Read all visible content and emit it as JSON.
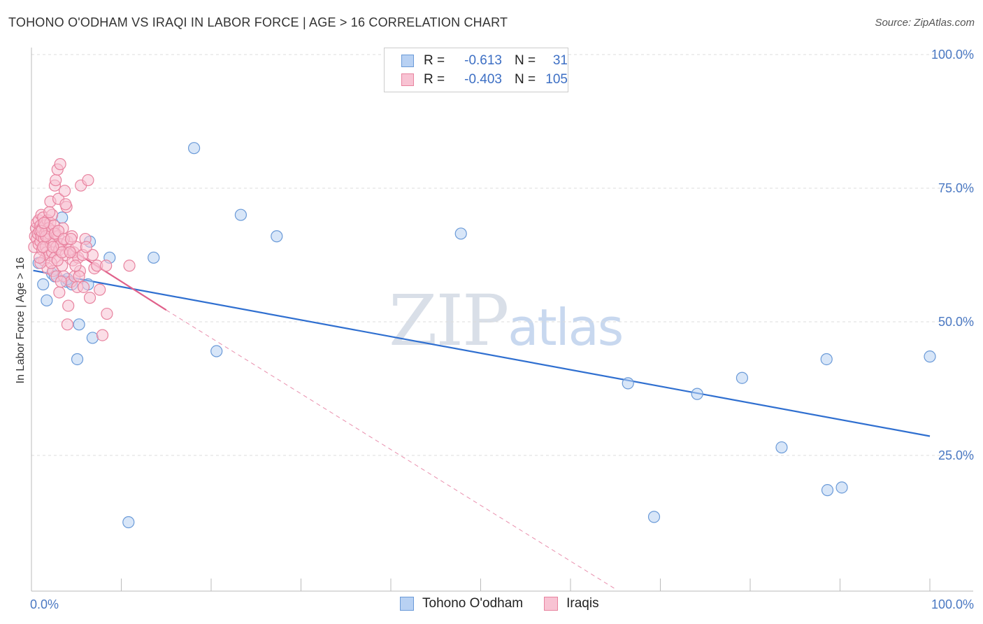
{
  "title": "TOHONO O'ODHAM VS IRAQI IN LABOR FORCE | AGE > 16 CORRELATION CHART",
  "source": "Source: ZipAtlas.com",
  "watermark": {
    "zip": "ZIP",
    "atlas": "atlas"
  },
  "legend": {
    "rows": [
      {
        "r_label": "R =",
        "r_value": "-0.613",
        "n_label": "N =",
        "n_value": "31",
        "fill": "#b8d1f3",
        "stroke": "#6a9ad8"
      },
      {
        "r_label": "R =",
        "r_value": "-0.403",
        "n_label": "N =",
        "n_value": "105",
        "fill": "#f8c3d3",
        "stroke": "#e8839f"
      }
    ]
  },
  "bottom_legend": [
    {
      "label": "Tohono O'odham",
      "fill": "#b8d1f3",
      "stroke": "#6a9ad8"
    },
    {
      "label": "Iraqis",
      "fill": "#f8c3d3",
      "stroke": "#e8839f"
    }
  ],
  "chart_data": {
    "type": "scatter",
    "xlabel": "",
    "ylabel": "In Labor Force | Age > 16",
    "xlim": [
      0,
      100
    ],
    "ylim": [
      0,
      103
    ],
    "x_tick_labels": [
      "0.0%",
      "100.0%"
    ],
    "y_ticks": [
      25,
      50,
      75,
      100
    ],
    "y_tick_labels": [
      "25.0%",
      "50.0%",
      "75.0%",
      "100.0%"
    ],
    "colors": {
      "blue_fill": "#b8d1f3",
      "blue_stroke": "#6a9ad8",
      "blue_line": "#2f6fd0",
      "pink_fill": "#f8c3d3",
      "pink_stroke": "#e8839f",
      "pink_line": "#e0608a"
    },
    "series": [
      {
        "name": "Tohono O'odham",
        "color": "blue",
        "points": [
          [
            0.8,
            61.0
          ],
          [
            1.3,
            57.0
          ],
          [
            1.7,
            54.0
          ],
          [
            2.3,
            59.0
          ],
          [
            2.6,
            58.5
          ],
          [
            3.4,
            69.5
          ],
          [
            3.9,
            57.5
          ],
          [
            4.5,
            57.0
          ],
          [
            5.1,
            43.0
          ],
          [
            5.3,
            49.5
          ],
          [
            6.3,
            57.0
          ],
          [
            6.5,
            65.0
          ],
          [
            6.8,
            47.0
          ],
          [
            8.7,
            62.0
          ],
          [
            10.8,
            12.5
          ],
          [
            13.6,
            62.0
          ],
          [
            18.1,
            82.5
          ],
          [
            20.6,
            44.5
          ],
          [
            23.3,
            70.0
          ],
          [
            27.3,
            66.0
          ],
          [
            47.8,
            66.5
          ],
          [
            66.4,
            38.5
          ],
          [
            69.3,
            13.5
          ],
          [
            74.1,
            36.5
          ],
          [
            79.1,
            39.5
          ],
          [
            83.5,
            26.5
          ],
          [
            88.5,
            43.0
          ],
          [
            88.6,
            18.5
          ],
          [
            90.2,
            19.0
          ],
          [
            100.0,
            43.5
          ],
          [
            4.0,
            58.0
          ]
        ],
        "trend": {
          "x": [
            0.2,
            100.0
          ],
          "y": [
            59.6,
            28.6
          ],
          "style": "solid"
        }
      },
      {
        "name": "Iraqis",
        "color": "pink",
        "points": [
          [
            0.3,
            64.0
          ],
          [
            0.4,
            66.0
          ],
          [
            0.5,
            67.5
          ],
          [
            0.6,
            65.5
          ],
          [
            0.6,
            68.5
          ],
          [
            0.7,
            66.5
          ],
          [
            0.8,
            69.0
          ],
          [
            0.8,
            64.5
          ],
          [
            0.9,
            67.0
          ],
          [
            1.0,
            65.0
          ],
          [
            1.0,
            68.0
          ],
          [
            1.1,
            70.0
          ],
          [
            1.1,
            66.0
          ],
          [
            1.2,
            63.5
          ],
          [
            1.2,
            67.5
          ],
          [
            1.3,
            69.5
          ],
          [
            1.4,
            61.5
          ],
          [
            1.4,
            65.5
          ],
          [
            1.5,
            68.0
          ],
          [
            1.5,
            66.5
          ],
          [
            1.6,
            64.0
          ],
          [
            1.7,
            67.0
          ],
          [
            1.7,
            63.0
          ],
          [
            1.8,
            69.0
          ],
          [
            1.8,
            60.0
          ],
          [
            1.9,
            65.5
          ],
          [
            2.0,
            66.5
          ],
          [
            2.0,
            62.5
          ],
          [
            2.1,
            68.5
          ],
          [
            2.1,
            72.5
          ],
          [
            2.2,
            64.5
          ],
          [
            2.3,
            63.0
          ],
          [
            2.3,
            70.0
          ],
          [
            2.4,
            67.0
          ],
          [
            2.4,
            59.5
          ],
          [
            2.5,
            65.0
          ],
          [
            2.6,
            75.5
          ],
          [
            2.6,
            62.0
          ],
          [
            2.7,
            66.5
          ],
          [
            2.7,
            76.5
          ],
          [
            2.8,
            64.0
          ],
          [
            2.8,
            58.5
          ],
          [
            2.9,
            78.5
          ],
          [
            3.0,
            73.0
          ],
          [
            3.0,
            66.0
          ],
          [
            3.1,
            63.5
          ],
          [
            3.1,
            55.5
          ],
          [
            3.2,
            79.5
          ],
          [
            3.3,
            64.5
          ],
          [
            3.4,
            60.5
          ],
          [
            3.5,
            67.5
          ],
          [
            3.6,
            58.5
          ],
          [
            3.7,
            74.5
          ],
          [
            3.8,
            62.5
          ],
          [
            3.9,
            71.5
          ],
          [
            4.0,
            65.0
          ],
          [
            4.0,
            49.5
          ],
          [
            4.1,
            53.0
          ],
          [
            4.2,
            63.5
          ],
          [
            4.4,
            57.5
          ],
          [
            4.5,
            66.0
          ],
          [
            4.6,
            61.5
          ],
          [
            4.7,
            63.0
          ],
          [
            4.8,
            58.5
          ],
          [
            5.0,
            64.0
          ],
          [
            5.1,
            56.5
          ],
          [
            5.2,
            62.0
          ],
          [
            5.4,
            59.5
          ],
          [
            5.5,
            75.5
          ],
          [
            5.8,
            56.5
          ],
          [
            6.0,
            65.5
          ],
          [
            6.3,
            76.5
          ],
          [
            6.5,
            54.5
          ],
          [
            6.8,
            62.5
          ],
          [
            7.0,
            60.0
          ],
          [
            7.3,
            60.5
          ],
          [
            7.6,
            56.0
          ],
          [
            7.9,
            47.5
          ],
          [
            8.3,
            60.5
          ],
          [
            8.4,
            51.5
          ],
          [
            10.9,
            60.5
          ],
          [
            1.0,
            61.0
          ],
          [
            1.3,
            64.0
          ],
          [
            1.9,
            67.5
          ],
          [
            2.2,
            61.0
          ],
          [
            2.5,
            68.0
          ],
          [
            2.9,
            61.5
          ],
          [
            3.4,
            63.0
          ],
          [
            4.3,
            63.0
          ],
          [
            0.9,
            62.0
          ],
          [
            1.6,
            66.0
          ],
          [
            2.0,
            70.5
          ],
          [
            2.6,
            66.5
          ],
          [
            3.3,
            57.5
          ],
          [
            4.9,
            60.5
          ],
          [
            5.7,
            62.5
          ],
          [
            6.1,
            64.0
          ],
          [
            1.1,
            67.0
          ],
          [
            1.4,
            68.5
          ],
          [
            2.4,
            64.0
          ],
          [
            3.0,
            67.0
          ],
          [
            3.6,
            65.5
          ],
          [
            4.4,
            65.5
          ],
          [
            5.3,
            58.5
          ],
          [
            3.8,
            72.0
          ]
        ],
        "trend_solid": {
          "x": [
            0.2,
            15.0
          ],
          "y": [
            68.0,
            52.2
          ],
          "style": "solid"
        },
        "trend_dashed": {
          "x": [
            15.0,
            65.0
          ],
          "y": [
            52.2,
            0.0
          ],
          "style": "dashed"
        }
      }
    ]
  }
}
